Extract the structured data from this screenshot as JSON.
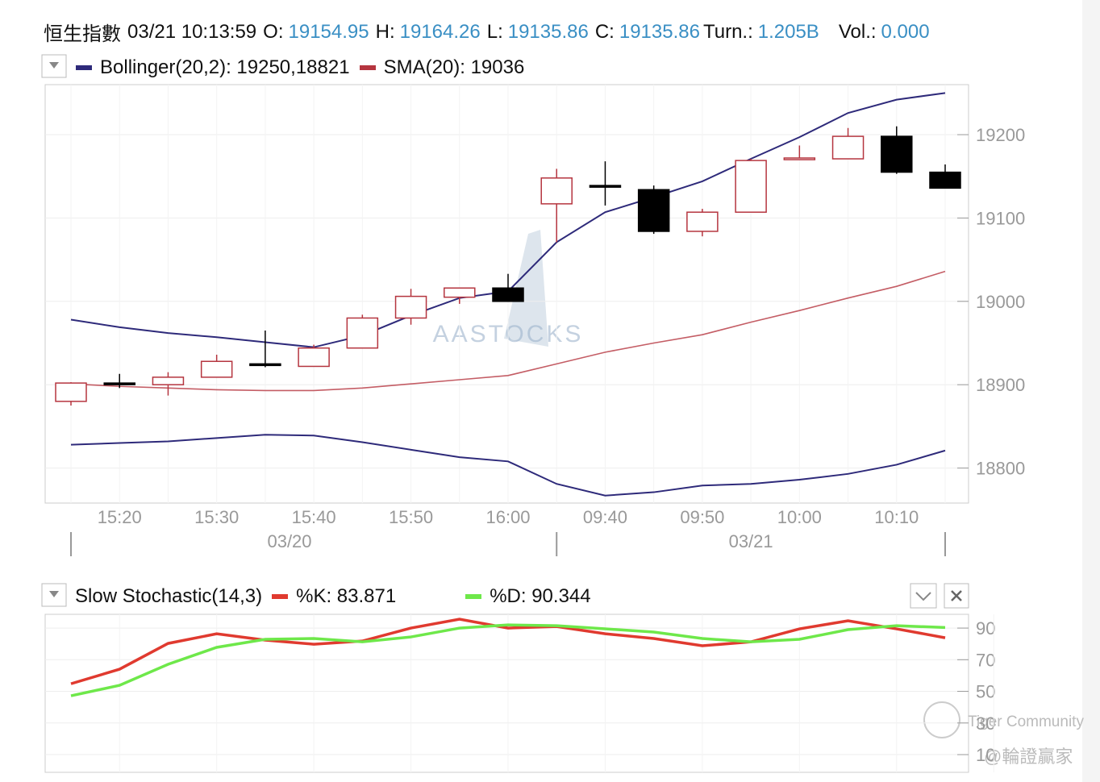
{
  "header": {
    "name": "恒生指數",
    "datetime": "03/21 10:13:59",
    "fields": [
      {
        "label": "O:",
        "value": "19154.95"
      },
      {
        "label": "H:",
        "value": "19164.26"
      },
      {
        "label": "L:",
        "value": "19135.86"
      },
      {
        "label": "C:",
        "value": "19135.86"
      },
      {
        "label": "Turn.:",
        "value": "1.205B"
      },
      {
        "label": "Vol.:",
        "value": "0.000"
      }
    ]
  },
  "watermarks": [
    "AASTOCKS",
    "Tiger Community",
    "@輪證贏家"
  ],
  "chart_data": [
    {
      "type": "candlestick",
      "categories": [
        null,
        "15:20",
        null,
        "15:30",
        null,
        "15:40",
        null,
        "15:50",
        null,
        "16:00",
        null,
        "09:40",
        null,
        "09:50",
        null,
        "10:00",
        null,
        "10:10",
        null
      ],
      "date_groups": [
        {
          "label": "03/20",
          "from": 0,
          "to": 9
        },
        {
          "label": "03/21",
          "from": 10,
          "to": 18
        }
      ],
      "open": [
        18880,
        18902,
        18900,
        18909,
        18925,
        18922,
        18944,
        18980,
        19005,
        19016,
        19117,
        19139,
        19134,
        19084,
        19107,
        19170,
        19171,
        19198,
        19154.95
      ],
      "high": [
        18903,
        18913,
        18915,
        18936,
        18965,
        18948,
        18984,
        19015,
        19016,
        19033,
        19159,
        19168,
        19139,
        19111,
        19171,
        19187,
        19208,
        19210,
        19164.26
      ],
      "low": [
        18875,
        18896,
        18887,
        18909,
        18921,
        18922,
        18944,
        18972,
        18997,
        19000,
        19071,
        19115,
        19081,
        19078,
        19107,
        19172,
        19171,
        19153,
        19135.86
      ],
      "close": [
        18902,
        18901,
        18909,
        18928,
        18924,
        18944,
        18980,
        19006,
        19016,
        19000,
        19148,
        19137,
        19084,
        19107,
        19169,
        19172,
        19198,
        19155,
        19135.86
      ],
      "up_color": "#b5353f",
      "down_color": "#000000",
      "ylim": [
        18758,
        19260
      ],
      "yticks": [
        18800,
        18900,
        19000,
        19100,
        19200
      ],
      "grid": true,
      "overlays": [
        {
          "name": "Bollinger(20,2): 19250,18821",
          "color": "#2e2a7a",
          "upper": [
            18978,
            18969,
            18962,
            18957,
            18951,
            18945,
            18959,
            18983,
            19004,
            19012,
            19071,
            19107,
            19125,
            19144,
            19171,
            19197,
            19226,
            19242,
            19250
          ],
          "lower": [
            18828,
            18830,
            18832,
            18836,
            18840,
            18839,
            18831,
            18822,
            18813,
            18808,
            18781,
            18767,
            18771,
            18779,
            18781,
            18786,
            18793,
            18804,
            18821
          ]
        },
        {
          "name": "SMA(20): 19036",
          "color": "#b5353f",
          "values": [
            18901,
            18898,
            18896,
            18894,
            18893,
            18893,
            18896,
            18901,
            18906,
            18911,
            18925,
            18939,
            18950,
            18960,
            18975,
            18989,
            19004,
            19018,
            19036
          ]
        }
      ]
    },
    {
      "type": "line",
      "title": "Slow Stochastic(14,3)",
      "ylim": [
        -1.2,
        98.7
      ],
      "yticks": [
        10,
        30,
        50,
        70,
        90
      ],
      "grid": true,
      "series": [
        {
          "name": "%K: 83.871",
          "color": "#e03a2f",
          "values": [
            54.8,
            64.0,
            80.3,
            86.4,
            82.4,
            79.8,
            81.8,
            90,
            95.6,
            90,
            91,
            86.4,
            83.4,
            78.8,
            81.3,
            89.5,
            94.6,
            89.5,
            83.871
          ]
        },
        {
          "name": "%D: 90.344",
          "color": "#6ee84a",
          "values": [
            47.2,
            53.8,
            67.1,
            77.8,
            82.9,
            83.4,
            81.3,
            84.4,
            90,
            92,
            91.5,
            89.5,
            87.5,
            83.4,
            81.3,
            82.9,
            89,
            91.5,
            90.344
          ]
        }
      ]
    }
  ]
}
